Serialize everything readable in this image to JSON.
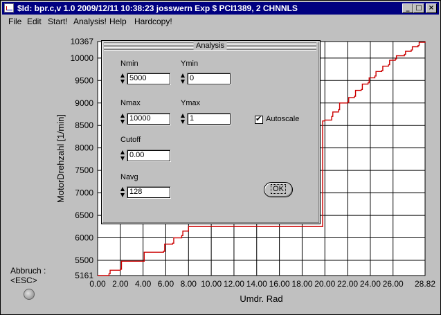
{
  "window": {
    "title": "$Id: bpr.c,v 1.0 2009/12/11 10:38:23 josswern Exp $ PCI1389, 2 CHNNLS",
    "min_label": "_",
    "max_label": "□",
    "close_label": "×"
  },
  "menu": [
    {
      "label": "File"
    },
    {
      "label": "Edit"
    },
    {
      "label": "Start!"
    },
    {
      "label": "Analysis!"
    },
    {
      "label": "Help"
    },
    {
      "label": "Hardcopy!"
    }
  ],
  "abbruch": {
    "line1": "Abbruch :",
    "line2": "<ESC>"
  },
  "dialog": {
    "title": "Analysis",
    "nmin_label": "Nmin",
    "nmin_value": "5000",
    "ymin_label": "Ymin",
    "ymin_value": "0",
    "nmax_label": "Nmax",
    "nmax_value": "10000",
    "ymax_label": "Ymax",
    "ymax_value": "1",
    "cutoff_label": "Cutoff",
    "cutoff_value": "0.00",
    "navg_label": "Navg",
    "navg_value": "128",
    "autoscale_label": "Autoscale",
    "autoscale_checked": true,
    "ok_label": "OK"
  },
  "chart_data": {
    "type": "line",
    "xlabel": "Umdr. Rad",
    "ylabel": "MotorDrehzahl [1/min]",
    "xlim": [
      0,
      28.82
    ],
    "ylim": [
      5161,
      10367
    ],
    "x_ticks": [
      0,
      2,
      4,
      6,
      8,
      10,
      12,
      14,
      16,
      18,
      20,
      22,
      24,
      26,
      28.82
    ],
    "x_tick_labels": [
      "0.00",
      "2.00",
      "4.00",
      "6.00",
      "8.00",
      "10.00",
      "12.00",
      "14.00",
      "16.00",
      "18.00",
      "20.00",
      "22.00",
      "24.00",
      "26.00",
      "28.82"
    ],
    "y_ticks": [
      5161,
      5500,
      6000,
      6500,
      7000,
      7500,
      8000,
      8500,
      9000,
      9500,
      10000,
      10367
    ],
    "y_tick_labels": [
      "5161",
      "5500",
      "6000",
      "6500",
      "7000",
      "7500",
      "8000",
      "8500",
      "9000",
      "9500",
      "10000",
      "10367"
    ],
    "grid": true,
    "background": "#ffffff",
    "line_color": "#cc0000",
    "series": [
      {
        "x": [
          0,
          1.0,
          1.1,
          2.0,
          2.1,
          4.0,
          4.1,
          5.8,
          5.9,
          6.6,
          6.7,
          7.4,
          7.5,
          8.0,
          19.8,
          20.0,
          20.6,
          20.7,
          21.2,
          21.3,
          22.0,
          22.1,
          22.6,
          22.7,
          23.2,
          23.3,
          23.8,
          23.9,
          24.4,
          24.5,
          25.0,
          25.1,
          25.6,
          25.7,
          26.2,
          26.3,
          27.0,
          27.1,
          27.6,
          27.7,
          28.2,
          28.3,
          28.82
        ],
        "y": [
          5161,
          5200,
          5280,
          5300,
          5480,
          5480,
          5680,
          5700,
          5860,
          5880,
          6000,
          6050,
          6150,
          6250,
          8600,
          8620,
          8700,
          8800,
          8850,
          9000,
          9020,
          9120,
          9150,
          9280,
          9300,
          9420,
          9450,
          9560,
          9600,
          9700,
          9720,
          9820,
          9850,
          9950,
          9980,
          10050,
          10080,
          10150,
          10180,
          10250,
          10280,
          10350,
          10367
        ]
      }
    ]
  }
}
